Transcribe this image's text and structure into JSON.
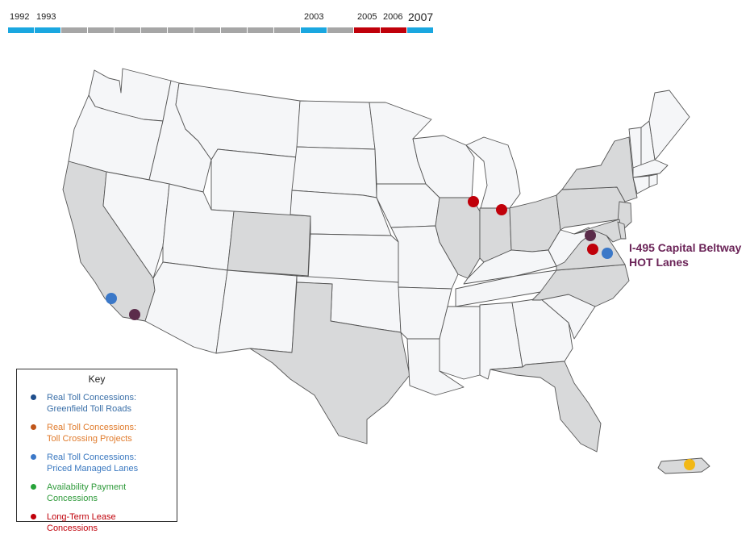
{
  "timeline": {
    "years": [
      {
        "label": "1992",
        "status": "active"
      },
      {
        "label": "1993",
        "status": "active"
      },
      {
        "label": "",
        "status": "inactive"
      },
      {
        "label": "",
        "status": "inactive"
      },
      {
        "label": "",
        "status": "inactive"
      },
      {
        "label": "",
        "status": "inactive"
      },
      {
        "label": "",
        "status": "inactive"
      },
      {
        "label": "",
        "status": "inactive"
      },
      {
        "label": "",
        "status": "inactive"
      },
      {
        "label": "",
        "status": "inactive"
      },
      {
        "label": "",
        "status": "inactive"
      },
      {
        "label": "2003",
        "status": "active"
      },
      {
        "label": "",
        "status": "inactive"
      },
      {
        "label": "2005",
        "status": "lease"
      },
      {
        "label": "2006",
        "status": "lease"
      },
      {
        "label": "2007",
        "status": "selected"
      }
    ],
    "colors": {
      "active": "#1aa7e0",
      "inactive": "#a6a6a6",
      "lease": "#c0000a",
      "selected": "#1aa7e0"
    }
  },
  "map": {
    "highlighted_states": [
      "WA-none",
      "CA",
      "CO",
      "TX",
      "IL",
      "IN",
      "OH",
      "FL",
      "VA",
      "NC",
      "PA",
      "NY",
      "NJ",
      "MD",
      "DE",
      "PR"
    ],
    "colors": {
      "state_default": "#f5f6f8",
      "state_highlight": "#d8d9da",
      "border": "#555555"
    },
    "markers": [
      {
        "name": "marker-southern-california-managed-lanes",
        "category": "priced_managed_lanes",
        "color": "#3b78c8"
      },
      {
        "name": "marker-southern-california-2",
        "category": "unknown_purple",
        "color": "#5b2c4a"
      },
      {
        "name": "marker-chicago-skyway",
        "category": "long_term_lease",
        "color": "#c0000a"
      },
      {
        "name": "marker-indiana-toll-road",
        "category": "long_term_lease",
        "color": "#c0000a"
      },
      {
        "name": "marker-northern-virginia",
        "category": "unknown_purple",
        "color": "#5b2c4a"
      },
      {
        "name": "marker-virginia-lease",
        "category": "long_term_lease",
        "color": "#c0000a"
      },
      {
        "name": "marker-i495-capital-beltway",
        "category": "priced_managed_lanes",
        "color": "#3b78c8"
      },
      {
        "name": "marker-puerto-rico",
        "category": "yellow",
        "color": "#f2b816"
      }
    ]
  },
  "callout": {
    "line1": "I-495 Capital Beltway",
    "line2": "HOT Lanes",
    "color": "#6b2458"
  },
  "key": {
    "title": "Key",
    "items": [
      {
        "line1": "Real Toll Concessions:",
        "line2": "Greenfield Toll Roads",
        "text_color": "#3a6fa8",
        "dot_color": "#1f4e8c"
      },
      {
        "line1": "Real Toll Concessions:",
        "line2": "Toll Crossing Projects",
        "text_color": "#e07b2c",
        "dot_color": "#c0561a"
      },
      {
        "line1": "Real Toll Concessions:",
        "line2": "Priced Managed Lanes",
        "text_color": "#3a78c0",
        "dot_color": "#3b78c8"
      },
      {
        "line1": "Availability Payment",
        "line2": "Concessions",
        "text_color": "#2e9a3a",
        "dot_color": "#27a33a"
      },
      {
        "line1": "Long-Term Lease",
        "line2": "Concessions",
        "text_color": "#c0000a",
        "dot_color": "#c0000a"
      }
    ]
  }
}
